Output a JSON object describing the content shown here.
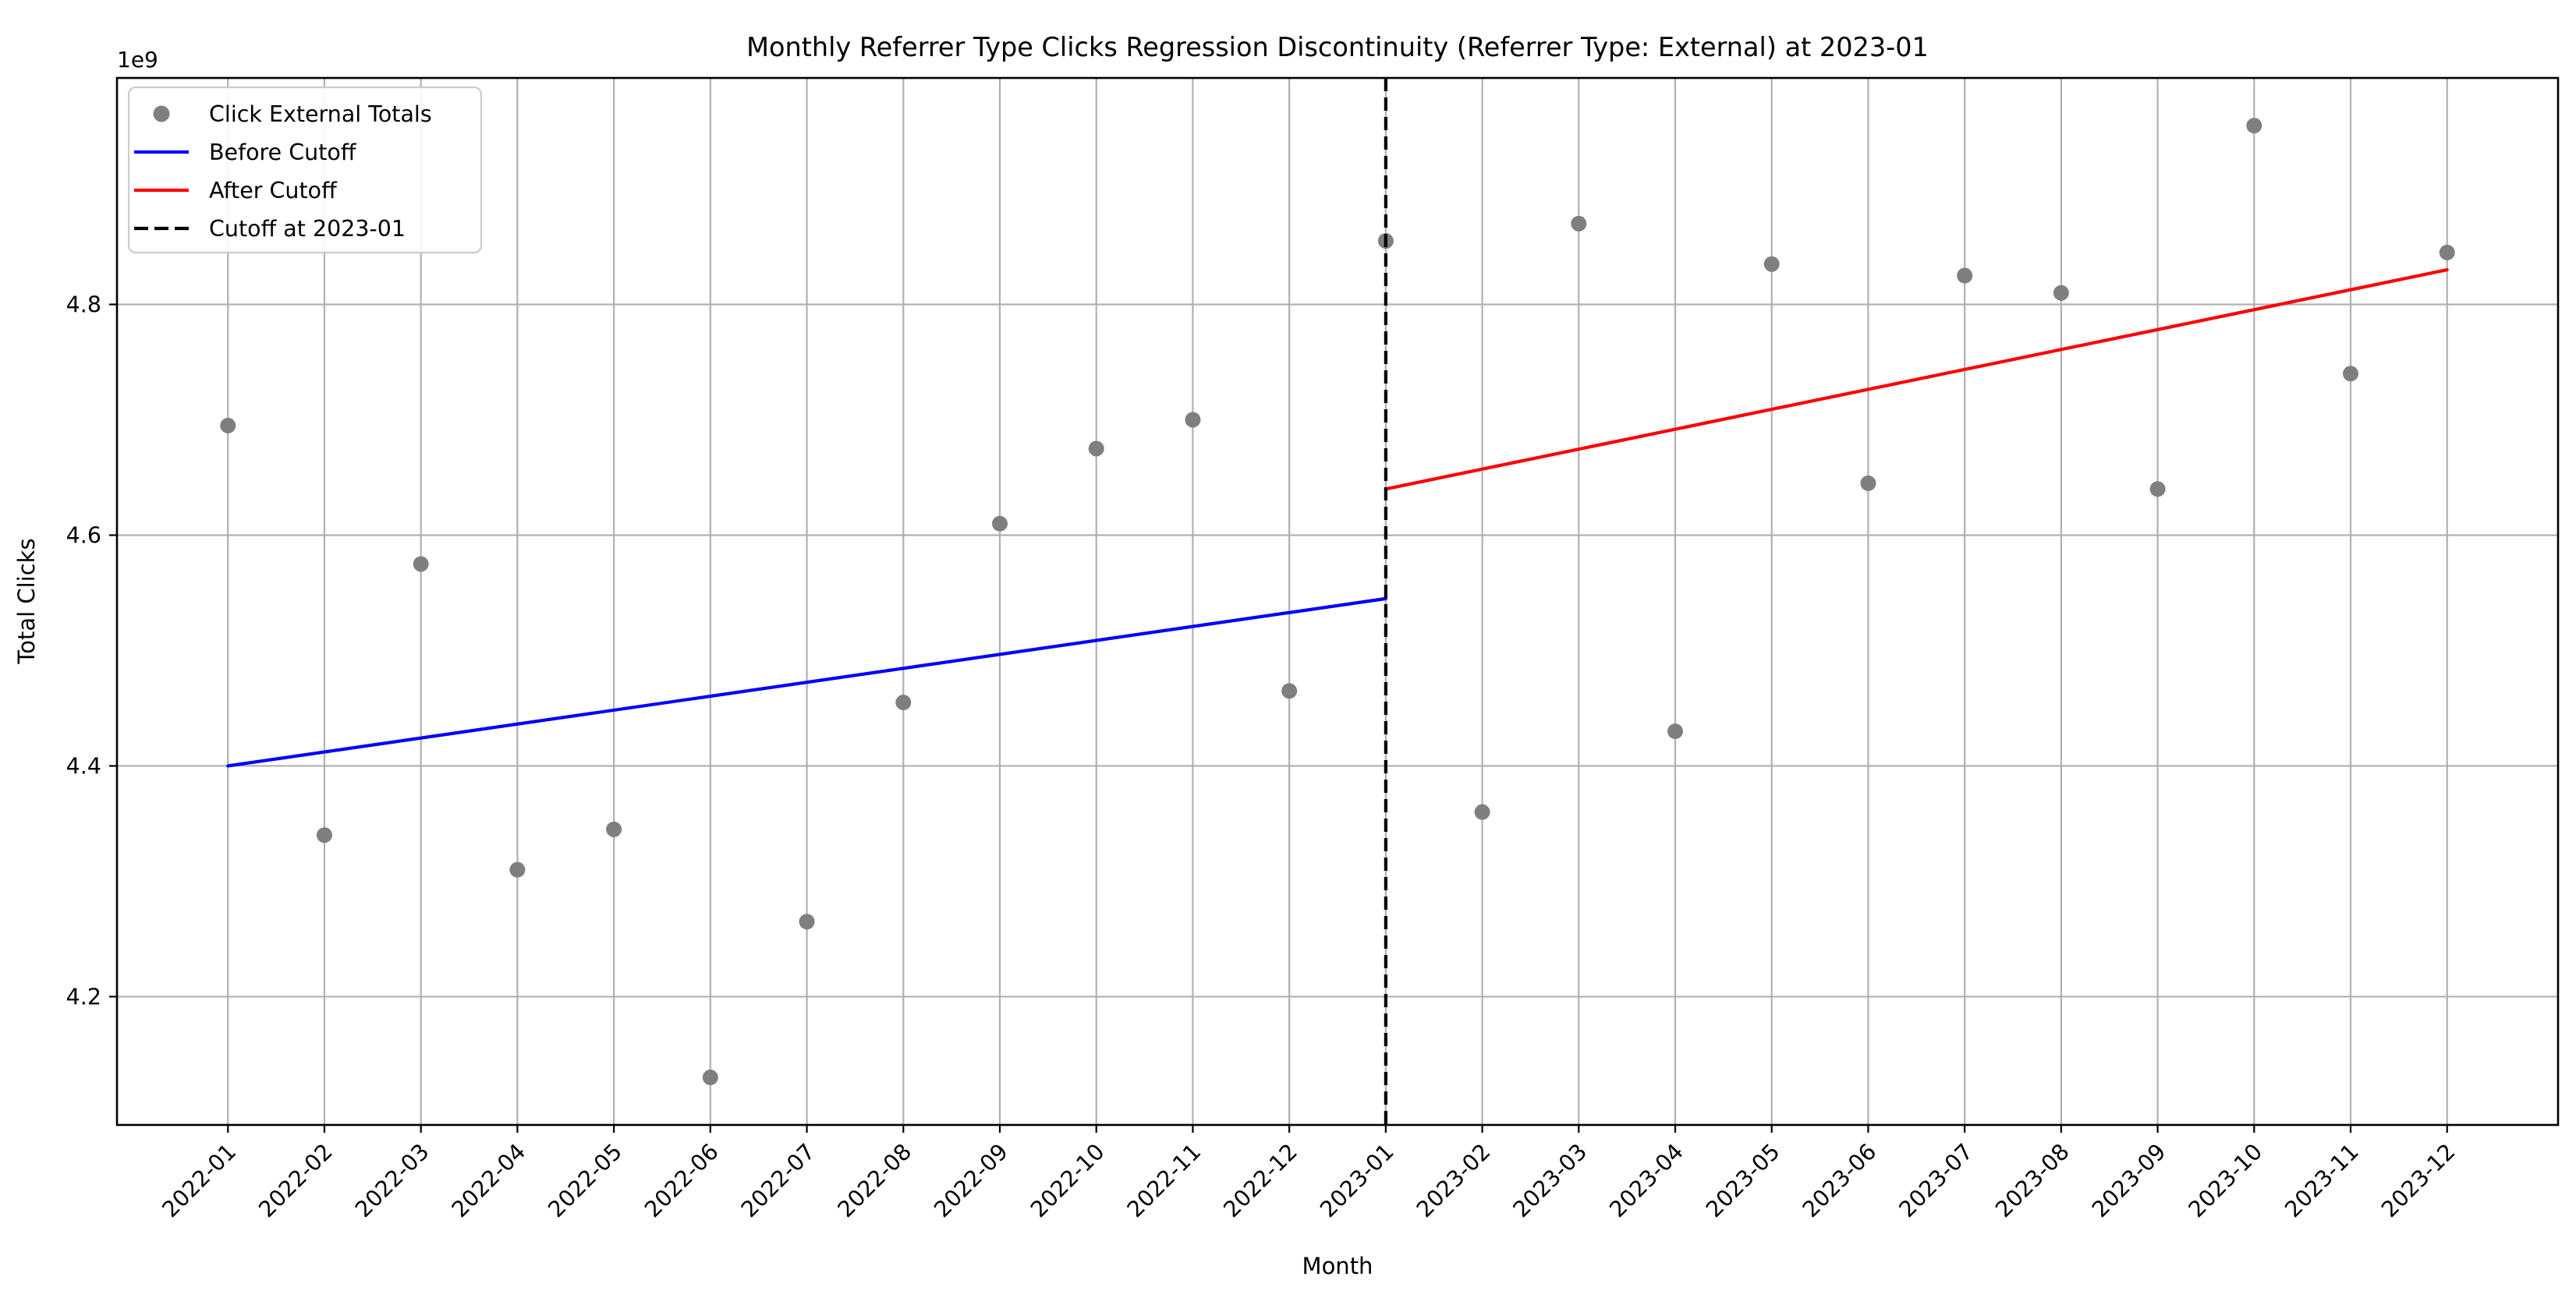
{
  "figure": {
    "title": "Monthly Referrer Type Clicks Regression Discontinuity (Referrer Type: External) at 2023-01",
    "xlabel": "Month",
    "ylabel": "Total Clicks",
    "offset_text": "1e9"
  },
  "legend": {
    "items": [
      {
        "label": "Click External Totals",
        "marker": "dot",
        "color": "#7f7f7f"
      },
      {
        "label": "Before Cutoff",
        "marker": "line",
        "color": "#0000ff"
      },
      {
        "label": "After Cutoff",
        "marker": "line",
        "color": "#ff0000"
      },
      {
        "label": "Cutoff at 2023-01",
        "marker": "dashed-line",
        "color": "#000000"
      }
    ]
  },
  "chart_data": {
    "type": "scatter",
    "title": "Monthly Referrer Type Clicks Regression Discontinuity (Referrer Type: External) at 2023-01",
    "xlabel": "Month",
    "ylabel": "Total Clicks",
    "y_unit_multiplier": "1e9",
    "grid": true,
    "legend_position": "upper left",
    "categories": [
      "2022-01",
      "2022-02",
      "2022-03",
      "2022-04",
      "2022-05",
      "2022-06",
      "2022-07",
      "2022-08",
      "2022-09",
      "2022-10",
      "2022-11",
      "2022-12",
      "2023-01",
      "2023-02",
      "2023-03",
      "2023-04",
      "2023-05",
      "2023-06",
      "2023-07",
      "2023-08",
      "2023-09",
      "2023-10",
      "2023-11",
      "2023-12"
    ],
    "series": [
      {
        "name": "Click External Totals",
        "type": "scatter",
        "color": "#7f7f7f",
        "values": [
          4.695,
          4.34,
          4.575,
          4.31,
          4.345,
          4.13,
          4.265,
          4.455,
          4.61,
          4.675,
          4.7,
          4.465,
          4.855,
          4.36,
          4.87,
          4.43,
          4.835,
          4.645,
          4.825,
          4.81,
          4.64,
          4.955,
          4.74,
          4.845
        ]
      },
      {
        "name": "Before Cutoff",
        "type": "line",
        "color": "#0000ff",
        "x": [
          "2022-01",
          "2023-01"
        ],
        "values": [
          4.4,
          4.545
        ]
      },
      {
        "name": "After Cutoff",
        "type": "line",
        "color": "#ff0000",
        "x": [
          "2023-01",
          "2023-12"
        ],
        "values": [
          4.64,
          4.83
        ]
      },
      {
        "name": "Cutoff at 2023-01",
        "type": "vline",
        "color": "#000000",
        "x": "2023-01",
        "style": "dashed"
      }
    ],
    "yticks": [
      4.2,
      4.4,
      4.6,
      4.8
    ],
    "ylim": [
      4.0888,
      4.9963
    ],
    "xtick_rotation_deg": 45
  },
  "style": {
    "grid_color": "#b0b0b0",
    "spine_color": "#000000",
    "background": "#ffffff",
    "legend_border": "#cccccc"
  }
}
